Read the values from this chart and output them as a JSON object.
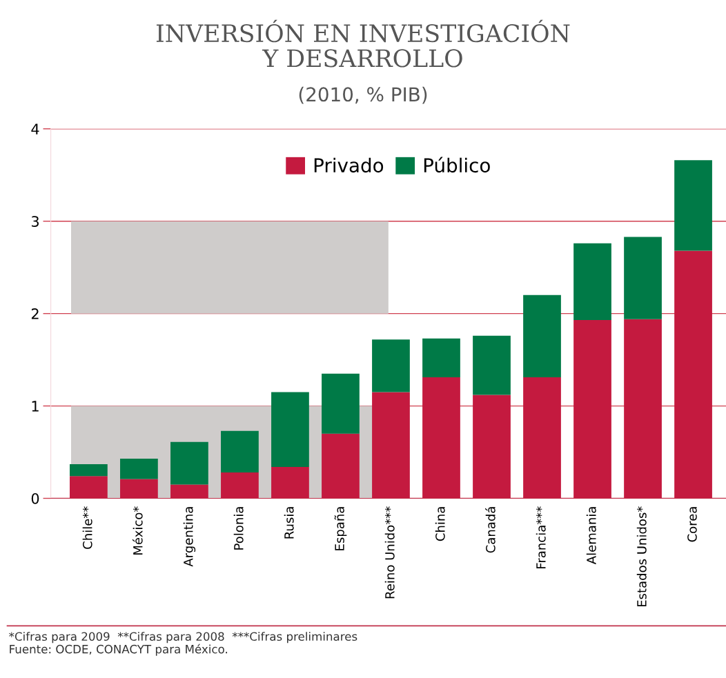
{
  "chart_data": {
    "type": "bar",
    "stacked": true,
    "title": "INVERSIÓN EN INVESTIGACIÓN\nY DESARROLLO",
    "subtitle": "(2010, % PIB)",
    "categories": [
      "Chile**",
      "México*",
      "Argentina",
      "Polonia",
      "Rusia",
      "España",
      "Reino Unido***",
      "China",
      "Canadá",
      "Francia***",
      "Alemania",
      "Estados Unidos*",
      "Corea"
    ],
    "series": [
      {
        "name": "Privado",
        "color": "#c41a3f",
        "values": [
          0.24,
          0.21,
          0.15,
          0.28,
          0.34,
          0.7,
          1.15,
          1.31,
          1.12,
          1.31,
          1.93,
          1.94,
          2.68
        ]
      },
      {
        "name": "Público",
        "color": "#007a47",
        "values": [
          0.13,
          0.22,
          0.46,
          0.45,
          0.81,
          0.65,
          0.57,
          0.42,
          0.64,
          0.89,
          0.83,
          0.89,
          0.98
        ]
      }
    ],
    "ylim": [
      0,
      4
    ],
    "yticks": [
      0,
      1,
      2,
      3,
      4
    ],
    "grid": "y",
    "legend": "top",
    "bands": [
      {
        "axis": "y",
        "from": 0,
        "to": 1,
        "color": "#cfcccb"
      },
      {
        "axis": "y",
        "from": 2,
        "to": 3,
        "color": "#cfcccb"
      }
    ],
    "annotations": [
      "*Cifras para 2009  **Cifras para 2008  ***Cifras preliminares",
      "Fuente: OCDE, CONACYT para México."
    ]
  }
}
